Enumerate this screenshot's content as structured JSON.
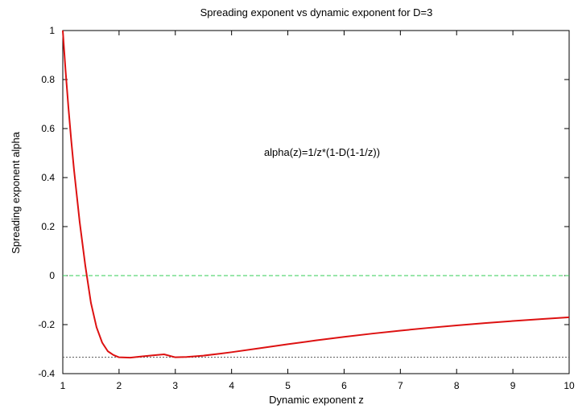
{
  "chart_data": {
    "type": "line",
    "title": "Spreading exponent vs dynamic exponent for D=3",
    "xlabel": "Dynamic exponent z",
    "ylabel": "Spreading exponent alpha",
    "xlim": [
      1,
      10
    ],
    "ylim": [
      -0.4,
      1
    ],
    "x_ticks": [
      "1",
      "2",
      "3",
      "4",
      "5",
      "6",
      "7",
      "8",
      "9",
      "10"
    ],
    "y_ticks": [
      "-0.4",
      "-0.2",
      "0",
      "0.2",
      "0.4",
      "0.6",
      "0.8",
      "1"
    ],
    "grid": false,
    "annotation": "alpha(z)=1/z*(1-D(1-1/z))",
    "series": [
      {
        "color": "#dd1111",
        "x": [
          1,
          1.05,
          1.1,
          1.15,
          1.2,
          1.3,
          1.4,
          1.5,
          1.6,
          1.7,
          1.8,
          1.9,
          2,
          2.2,
          2.4,
          2.6,
          2.8,
          3,
          3.2,
          3.5,
          3.8,
          4,
          4.5,
          5,
          5.5,
          6,
          6.5,
          7,
          7.5,
          8,
          8.5,
          9,
          9.5,
          10
        ],
        "y": [
          1,
          0.8345,
          0.686,
          0.552,
          0.4306,
          0.2189,
          0.0408,
          -0.1111,
          -0.2109,
          -0.2734,
          -0.3086,
          -0.3241,
          -0.3333,
          -0.3347,
          -0.3299,
          -0.3254,
          -0.3214,
          -0.3333,
          -0.332,
          -0.3265,
          -0.3186,
          -0.3125,
          -0.2963,
          -0.28,
          -0.2645,
          -0.25,
          -0.2367,
          -0.2245,
          -0.2133,
          -0.2031,
          -0.1938,
          -0.1852,
          -0.1773,
          -0.17
        ]
      },
      {
        "color": "#33cc55",
        "style": "dashed",
        "x": [
          1,
          10
        ],
        "y": [
          0,
          0
        ]
      },
      {
        "color": "#555555",
        "style": "dotted",
        "x": [
          1,
          10
        ],
        "y": [
          -0.3333,
          -0.3333
        ]
      }
    ]
  }
}
